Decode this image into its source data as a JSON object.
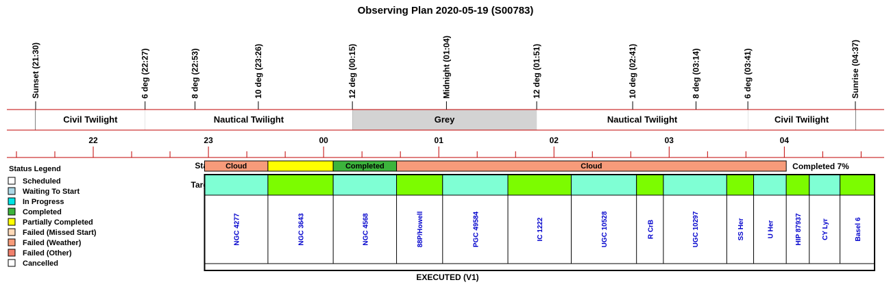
{
  "title": "Observing Plan 2020-05-19 (S00783)",
  "chart_data": {
    "type": "table",
    "time_axis": {
      "start": "21:30",
      "end": "04:37",
      "tick_labels": [
        "22",
        "23",
        "00",
        "01",
        "02",
        "03",
        "04"
      ]
    },
    "events": [
      {
        "label": "Sunset (21:30)",
        "time": "21:30"
      },
      {
        "label": "6 deg (22:27)",
        "time": "22:27"
      },
      {
        "label": "8 deg (22:53)",
        "time": "22:53"
      },
      {
        "label": "10 deg (23:26)",
        "time": "23:26"
      },
      {
        "label": "12 deg (00:15)",
        "time": "00:15"
      },
      {
        "label": "Midnight (01:04)",
        "time": "01:04"
      },
      {
        "label": "12 deg (01:51)",
        "time": "01:51"
      },
      {
        "label": "10 deg (02:41)",
        "time": "02:41"
      },
      {
        "label": "8 deg (03:14)",
        "time": "03:14"
      },
      {
        "label": "6 deg (03:41)",
        "time": "03:41"
      },
      {
        "label": "Sunrise (04:37)",
        "time": "04:37"
      }
    ],
    "bands": [
      {
        "label": "Civil Twilight",
        "start": "21:30",
        "end": "22:27",
        "color": "#ffffff"
      },
      {
        "label": "Nautical Twilight",
        "start": "22:27",
        "end": "00:15",
        "color": "#ffffff"
      },
      {
        "label": "Grey",
        "start": "00:15",
        "end": "01:51",
        "color": "#d3d3d3"
      },
      {
        "label": "Nautical Twilight",
        "start": "01:51",
        "end": "03:41",
        "color": "#ffffff"
      },
      {
        "label": "Civil Twilight",
        "start": "03:41",
        "end": "04:37",
        "color": "#ffffff"
      }
    ],
    "status_row": {
      "label": "Status",
      "completion": "Completed 7%",
      "segments": [
        {
          "label": "Cloud",
          "status": "Failed (Weather)",
          "start": "22:58",
          "end": "23:31",
          "color": "#f79b7a"
        },
        {
          "label": "",
          "status": "Partially Completed",
          "start": "23:31",
          "end": "00:05",
          "color": "#ffff00"
        },
        {
          "label": "Completed",
          "status": "Completed",
          "start": "00:05",
          "end": "00:38",
          "color": "#3cb43c"
        },
        {
          "label": "Cloud",
          "status": "Failed (Weather)",
          "start": "00:38",
          "end": "04:01",
          "color": "#f79b7a"
        }
      ]
    },
    "targets_row": {
      "label": "Targets",
      "items": [
        {
          "name": "NGC 4277",
          "start": "22:58",
          "end": "23:31",
          "color": "#7fffd4"
        },
        {
          "name": "NGC 3643",
          "start": "23:31",
          "end": "00:05",
          "color": "#7cfc00"
        },
        {
          "name": "NGC 4568",
          "start": "00:05",
          "end": "00:38",
          "color": "#7fffd4"
        },
        {
          "name": "88P/Howell",
          "start": "00:38",
          "end": "01:02",
          "color": "#7cfc00"
        },
        {
          "name": "PGC 49584",
          "start": "01:02",
          "end": "01:36",
          "color": "#7fffd4"
        },
        {
          "name": "IC 1222",
          "start": "01:36",
          "end": "02:09",
          "color": "#7cfc00"
        },
        {
          "name": "UGC 10528",
          "start": "02:09",
          "end": "02:43",
          "color": "#7fffd4"
        },
        {
          "name": "R CrB",
          "start": "02:43",
          "end": "02:57",
          "color": "#7cfc00"
        },
        {
          "name": "UGC 10297",
          "start": "02:57",
          "end": "03:30",
          "color": "#7fffd4"
        },
        {
          "name": "SS Her",
          "start": "03:30",
          "end": "03:44",
          "color": "#7cfc00"
        },
        {
          "name": "U Her",
          "start": "03:44",
          "end": "04:01",
          "color": "#7fffd4"
        },
        {
          "name": "HIP 87937",
          "start": "04:01",
          "end": "04:13",
          "color": "#7cfc00"
        },
        {
          "name": "CY Lyr",
          "start": "04:13",
          "end": "04:29",
          "color": "#7fffd4"
        },
        {
          "name": "Basel 6",
          "start": "04:29",
          "end": "04:47",
          "color": "#7cfc00"
        }
      ]
    },
    "footer": "EXECUTED (V1)"
  },
  "legend": {
    "title": "Status Legend",
    "items": [
      {
        "label": "Scheduled",
        "color": "#ffffff"
      },
      {
        "label": "Waiting To Start",
        "color": "#add8e6"
      },
      {
        "label": "In Progress",
        "color": "#00e5e5"
      },
      {
        "label": "Completed",
        "color": "#3cb43c"
      },
      {
        "label": "Partially Completed",
        "color": "#ffff00"
      },
      {
        "label": "Failed (Missed Start)",
        "color": "#ffdab9"
      },
      {
        "label": "Failed (Weather)",
        "color": "#f79b7a"
      },
      {
        "label": "Failed (Other)",
        "color": "#f0806c"
      },
      {
        "label": "Cancelled",
        "color": "#ffffff"
      }
    ]
  },
  "colors": {
    "axis_line": "#c00000",
    "target_text": "#0000cc"
  }
}
